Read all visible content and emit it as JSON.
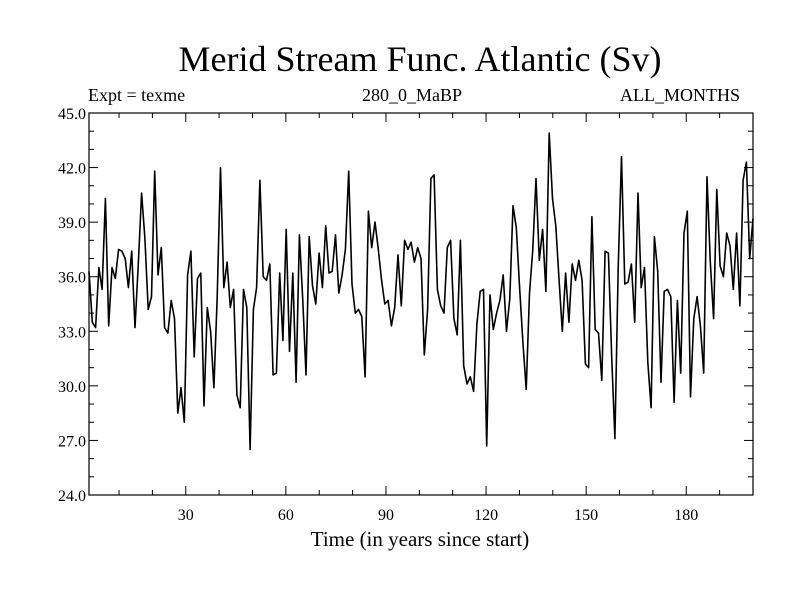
{
  "chart_data": {
    "type": "line",
    "title": "Merid Stream Func. Atlantic (Sv)",
    "subtitle_left": "Expt = texme",
    "subtitle_center": "280_0_MaBP",
    "subtitle_right": "ALL_MONTHS",
    "xlabel": "Time (in years since start)",
    "ylabel": "",
    "xlim": [
      1,
      200
    ],
    "ylim": [
      24.0,
      45.0
    ],
    "xticks": [
      30,
      60,
      90,
      120,
      150,
      180
    ],
    "yticks": [
      "24.0",
      "27.0",
      "30.0",
      "33.0",
      "36.0",
      "39.0",
      "42.0",
      "45.0"
    ],
    "series": [
      {
        "name": "Merid Stream Func. Atlantic",
        "values": [
          36.3,
          33.5,
          33.2,
          36.5,
          35.3,
          40.3,
          33.3,
          36.5,
          35.9,
          37.5,
          37.4,
          37.0,
          35.4,
          37.4,
          33.2,
          36.7,
          40.6,
          38.1,
          34.2,
          34.9,
          41.8,
          36.1,
          37.6,
          33.2,
          32.9,
          34.7,
          33.7,
          28.5,
          29.9,
          28.0,
          36.1,
          37.4,
          31.6,
          35.9,
          36.2,
          28.9,
          34.3,
          33.0,
          29.9,
          34.9,
          42.0,
          35.4,
          36.8,
          34.3,
          35.3,
          29.5,
          28.8,
          35.3,
          34.3,
          26.5,
          34.2,
          35.4,
          41.3,
          36.0,
          35.8,
          36.7,
          30.6,
          30.7,
          36.2,
          32.5,
          38.6,
          31.9,
          36.2,
          30.2,
          38.3,
          34.8,
          30.6,
          38.2,
          35.5,
          34.5,
          37.3,
          35.4,
          38.8,
          36.2,
          36.3,
          38.3,
          35.1,
          36.1,
          37.5,
          41.8,
          35.6,
          34.0,
          34.2,
          33.8,
          30.5,
          39.6,
          37.6,
          39.0,
          37.5,
          35.8,
          34.5,
          34.7,
          33.3,
          34.3,
          37.2,
          34.4,
          38.0,
          37.5,
          37.9,
          36.8,
          37.6,
          37.0,
          31.7,
          34.2,
          41.4,
          41.6,
          35.3,
          34.4,
          34.0,
          37.6,
          38.0,
          33.7,
          32.8,
          38.0,
          31.1,
          30.1,
          30.5,
          29.7,
          33.4,
          35.2,
          35.3,
          26.7,
          35.0,
          33.1,
          34.0,
          34.7,
          36.1,
          33.0,
          34.8,
          39.9,
          38.7,
          35.4,
          32.4,
          29.8,
          35.1,
          37.5,
          41.4,
          36.9,
          38.6,
          35.2,
          43.9,
          40.3,
          38.8,
          35.8,
          33.0,
          36.2,
          33.5,
          36.7,
          35.8,
          36.9,
          35.8,
          31.2,
          31.0,
          39.3,
          33.1,
          32.9,
          30.3,
          37.4,
          37.3,
          31.6,
          27.1,
          36.5,
          42.6,
          35.6,
          35.7,
          36.7,
          33.5,
          40.6,
          35.4,
          36.5,
          31.3,
          28.8,
          38.2,
          36.3,
          30.2,
          35.2,
          35.3,
          34.9,
          29.1,
          34.7,
          30.7,
          38.4,
          39.6,
          29.4,
          33.7,
          34.9,
          33.3,
          30.7,
          41.5,
          36.8,
          33.7,
          40.8,
          36.6,
          36.0,
          38.4,
          37.7,
          35.3,
          38.4,
          34.4,
          41.3,
          42.3,
          37.0,
          39.2
        ]
      }
    ]
  }
}
